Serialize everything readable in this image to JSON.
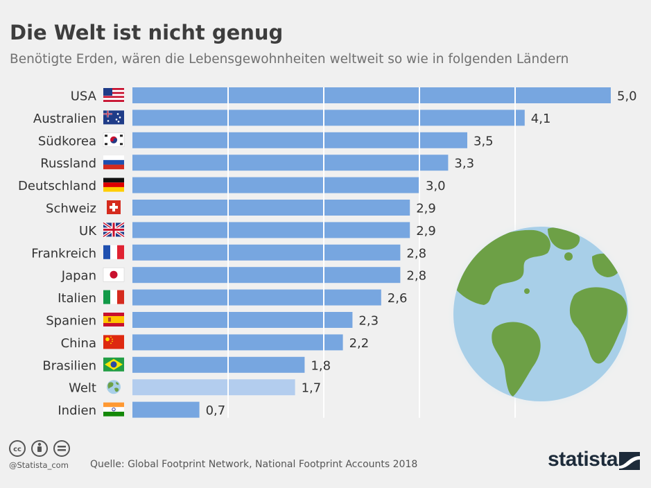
{
  "title": "Die Welt ist nicht genug",
  "subtitle": "Benötigte Erden, wären die Lebensgewohnheiten weltweit so wie in folgenden Ländern",
  "footer": {
    "handle": "@Statista_com",
    "source": "Quelle: Global Footprint Network, National Footprint Accounts 2018",
    "logo": "statista"
  },
  "colors": {
    "bar": "#77a6e0",
    "bar_highlight": "#b3cdee",
    "gridline": "#ffffff",
    "ocean": "#a8cfe8",
    "land": "#6da046"
  },
  "chart_data": {
    "type": "bar",
    "orientation": "horizontal",
    "categories": [
      "USA",
      "Australien",
      "Südkorea",
      "Russland",
      "Deutschland",
      "Schweiz",
      "UK",
      "Frankreich",
      "Japan",
      "Italien",
      "Spanien",
      "China",
      "Brasilien",
      "Welt",
      "Indien"
    ],
    "values": [
      5.0,
      4.1,
      3.5,
      3.3,
      3.0,
      2.9,
      2.9,
      2.8,
      2.8,
      2.6,
      2.3,
      2.2,
      1.8,
      1.7,
      0.7
    ],
    "value_labels": [
      "5,0",
      "4,1",
      "3,5",
      "3,3",
      "3,0",
      "2,9",
      "2,9",
      "2,8",
      "2,8",
      "2,6",
      "2,3",
      "2,2",
      "1,8",
      "1,7",
      "0,7"
    ],
    "flags": [
      "flag-usa",
      "flag-australia",
      "flag-south-korea",
      "flag-russia",
      "flag-germany",
      "flag-switzerland",
      "flag-uk",
      "flag-france",
      "flag-japan",
      "flag-italy",
      "flag-spain",
      "flag-china",
      "flag-brazil",
      "globe-icon",
      "flag-india"
    ],
    "highlight": [
      "Welt"
    ],
    "xlim": [
      0,
      5
    ],
    "grid": true,
    "xlabel": "",
    "ylabel": ""
  }
}
